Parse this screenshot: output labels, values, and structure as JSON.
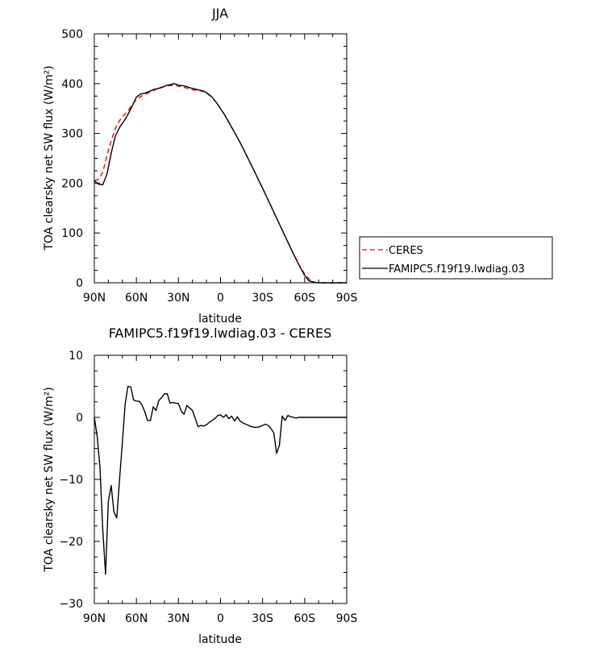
{
  "chart_data": [
    {
      "type": "line",
      "title": "JJA",
      "xlabel": "latitude",
      "ylabel": "TOA clearsky net SW flux (W/m²)",
      "xlim": [
        90,
        -90
      ],
      "ylim": [
        0,
        500
      ],
      "xticks": [
        90,
        60,
        30,
        0,
        -30,
        -60,
        -90
      ],
      "xticklabels": [
        "90N",
        "60N",
        "30N",
        "0",
        "30S",
        "60S",
        "90S"
      ],
      "yticks": [
        0,
        100,
        200,
        300,
        400,
        500
      ],
      "yticklabels": [
        "0",
        "100",
        "200",
        "300",
        "400",
        "500"
      ],
      "grid": false,
      "legend_position": "right",
      "series": [
        {
          "name": "CERES",
          "color": "#ff0000",
          "dash": "dashed",
          "x": [
            90,
            87,
            84,
            81,
            78,
            75,
            72,
            69,
            66,
            63,
            60,
            57,
            54,
            51,
            48,
            45,
            42,
            39,
            36,
            33,
            30,
            27,
            24,
            21,
            18,
            15,
            12,
            9,
            6,
            3,
            0,
            -3,
            -6,
            -9,
            -12,
            -15,
            -18,
            -21,
            -24,
            -27,
            -30,
            -33,
            -36,
            -39,
            -42,
            -45,
            -48,
            -51,
            -54,
            -57,
            -60,
            -63,
            -66,
            -69,
            -72,
            -75,
            -78,
            -81,
            -84,
            -87,
            -90
          ],
          "values": [
            205,
            208,
            222,
            255,
            285,
            310,
            326,
            336,
            345,
            358,
            368,
            374,
            378,
            382,
            386,
            390,
            393,
            395,
            396,
            397,
            395,
            393,
            391,
            388,
            387,
            386,
            384,
            379,
            372,
            362,
            350,
            337,
            322,
            307,
            292,
            276,
            259,
            242,
            225,
            207,
            190,
            172,
            154,
            136,
            118,
            100,
            82,
            64,
            47,
            31,
            18,
            8,
            2,
            0,
            0,
            0,
            0,
            0,
            0,
            0,
            0
          ]
        },
        {
          "name": "FAMIPC5.f19f19.lwdiag.03",
          "color": "#000000",
          "dash": "solid",
          "x": [
            90,
            87,
            84,
            81,
            78,
            75,
            72,
            69,
            66,
            63,
            60,
            57,
            54,
            51,
            48,
            45,
            42,
            39,
            36,
            33,
            30,
            27,
            24,
            21,
            18,
            15,
            12,
            9,
            6,
            3,
            0,
            -3,
            -6,
            -9,
            -12,
            -15,
            -18,
            -21,
            -24,
            -27,
            -30,
            -33,
            -36,
            -39,
            -42,
            -45,
            -48,
            -51,
            -54,
            -57,
            -60,
            -63,
            -66,
            -69,
            -72,
            -75,
            -78,
            -81,
            -84,
            -87,
            -90
          ],
          "values": [
            205,
            198,
            197,
            218,
            260,
            295,
            312,
            324,
            338,
            355,
            373,
            379,
            381,
            384,
            388,
            390,
            392,
            396,
            398,
            400,
            397,
            396,
            394,
            391,
            389,
            387,
            385,
            380,
            373,
            362,
            350,
            337,
            322,
            307,
            292,
            276,
            259,
            242,
            225,
            207,
            190,
            172,
            154,
            136,
            118,
            100,
            82,
            64,
            47,
            30,
            15,
            4,
            2,
            0,
            0,
            0,
            0,
            0,
            0,
            0,
            0
          ]
        }
      ]
    },
    {
      "type": "line",
      "title": "FAMIPC5.f19f19.lwdiag.03 - CERES",
      "xlabel": "latitude",
      "ylabel": "TOA clearsky net SW flux (W/m²)",
      "xlim": [
        90,
        -90
      ],
      "ylim": [
        -30,
        10
      ],
      "xticks": [
        90,
        60,
        30,
        0,
        -30,
        -60,
        -90
      ],
      "xticklabels": [
        "90N",
        "60N",
        "30N",
        "0",
        "30S",
        "60S",
        "90S"
      ],
      "yticks": [
        -30,
        -20,
        -10,
        0,
        10
      ],
      "yticklabels": [
        "−30",
        "−20",
        "−10",
        "0",
        "10"
      ],
      "grid": false,
      "series": [
        {
          "color": "#000000",
          "dash": "solid",
          "x": [
            90,
            88,
            86,
            84,
            82,
            80,
            78,
            76,
            74,
            72,
            70,
            68,
            66,
            64,
            62,
            60,
            58,
            56,
            54,
            52,
            50,
            48,
            46,
            44,
            42,
            40,
            38,
            36,
            34,
            32,
            30,
            28,
            26,
            24,
            22,
            20,
            18,
            16,
            14,
            12,
            10,
            8,
            6,
            4,
            2,
            0,
            -2,
            -4,
            -6,
            -8,
            -10,
            -12,
            -14,
            -16,
            -18,
            -20,
            -22,
            -24,
            -26,
            -28,
            -30,
            -32,
            -34,
            -36,
            -38,
            -40,
            -42,
            -44,
            -46,
            -48,
            -50,
            -52,
            -54,
            -56,
            -58,
            -60,
            -62,
            -64,
            -66,
            -68,
            -70,
            -72,
            -75,
            -80,
            -85,
            -90
          ],
          "values": [
            0,
            -3,
            -8,
            -18,
            -25.3,
            -13.5,
            -11,
            -15.3,
            -16.2,
            -10,
            -4,
            2.2,
            5.0,
            4.9,
            2.8,
            2.6,
            2.6,
            2.0,
            0.9,
            -0.5,
            -0.5,
            1.7,
            1.1,
            2.7,
            3.2,
            3.8,
            3.8,
            2.3,
            2.4,
            2.3,
            2.2,
            1.0,
            0.5,
            1.9,
            1.5,
            1.1,
            -0.2,
            -1.5,
            -1.3,
            -1.4,
            -1.2,
            -0.8,
            -0.5,
            -0.2,
            0.3,
            0.4,
            0.0,
            0.4,
            -0.2,
            0.2,
            -0.6,
            0.1,
            -0.6,
            -0.9,
            -1.1,
            -1.3,
            -1.5,
            -1.6,
            -1.6,
            -1.5,
            -1.3,
            -1.1,
            -1.3,
            -1.8,
            -2.5,
            -5.8,
            -4.5,
            0.2,
            -0.5,
            0.3,
            0.1,
            0.0,
            -0.1,
            0.0,
            0.0,
            0.0,
            0.0,
            0.0,
            0.0,
            0.0,
            0.0,
            0.0,
            0.0,
            0.0,
            0.0,
            0.0
          ]
        }
      ]
    }
  ]
}
